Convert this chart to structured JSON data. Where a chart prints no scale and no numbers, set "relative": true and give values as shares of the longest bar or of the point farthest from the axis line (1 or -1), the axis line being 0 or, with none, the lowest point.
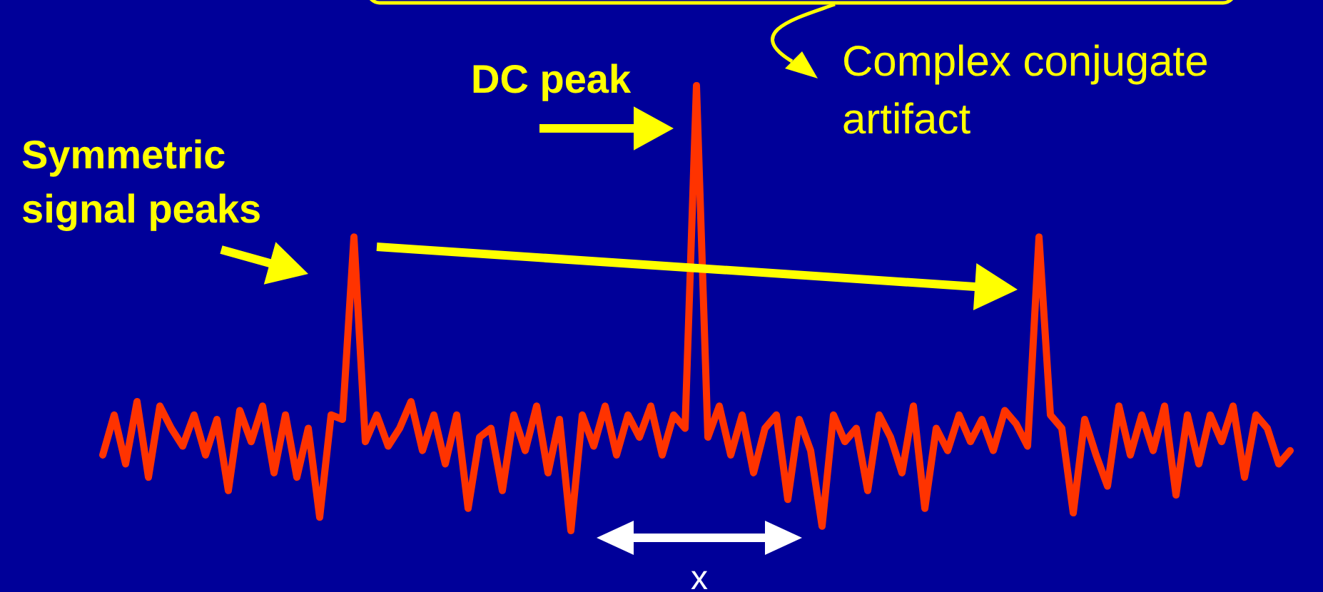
{
  "chart_data": {
    "type": "line",
    "relative": true,
    "categories": [
      null,
      null,
      null,
      null,
      null,
      null,
      null,
      null,
      null,
      null,
      null,
      null,
      null,
      null,
      null,
      null,
      null,
      null,
      null,
      null,
      null,
      null,
      null,
      null,
      null,
      null,
      null,
      null,
      null,
      null,
      null,
      null,
      null,
      null,
      null,
      null,
      null,
      null,
      null,
      null,
      null,
      null,
      null,
      null,
      null,
      null,
      null,
      null,
      null,
      null,
      null,
      null,
      null,
      null,
      null,
      null,
      null,
      null,
      null,
      null,
      null,
      null,
      null,
      null,
      null,
      null,
      null,
      null,
      null,
      null,
      null,
      null,
      null,
      null,
      null,
      null,
      null,
      null,
      null,
      null,
      null,
      null,
      null,
      null,
      null,
      null,
      null,
      null,
      null,
      null,
      null,
      null,
      null,
      null,
      null,
      null,
      null,
      null,
      null,
      null,
      null,
      null,
      null,
      null,
      null
    ],
    "series": [
      {
        "color": "#ff3300",
        "values": [
          0.17,
          0.26,
          0.15,
          0.29,
          0.12,
          0.28,
          0.23,
          0.19,
          0.26,
          0.17,
          0.25,
          0.09,
          0.27,
          0.2,
          0.28,
          0.13,
          0.26,
          0.12,
          0.23,
          0.03,
          0.26,
          0.25,
          0.66,
          0.2,
          0.26,
          0.19,
          0.23,
          0.29,
          0.18,
          0.26,
          0.15,
          0.26,
          0.05,
          0.21,
          0.23,
          0.09,
          0.26,
          0.18,
          0.28,
          0.13,
          0.25,
          0,
          0.26,
          0.19,
          0.28,
          0.17,
          0.26,
          0.21,
          0.28,
          0.17,
          0.26,
          0.23,
          1,
          0.21,
          0.28,
          0.17,
          0.26,
          0.13,
          0.23,
          0.26,
          0.07,
          0.25,
          0.18,
          0.01,
          0.26,
          0.2,
          0.23,
          0.09,
          0.26,
          0.21,
          0.13,
          0.28,
          0.05,
          0.23,
          0.18,
          0.26,
          0.2,
          0.25,
          0.18,
          0.27,
          0.24,
          0.19,
          0.66,
          0.26,
          0.23,
          0.04,
          0.25,
          0.17,
          0.1,
          0.28,
          0.17,
          0.26,
          0.18,
          0.28,
          0.08,
          0.26,
          0.15,
          0.26,
          0.2,
          0.28,
          0.12,
          0.26,
          0.23,
          0.15,
          0.18
        ]
      }
    ],
    "annotations": [
      "DC peak",
      "Symmetric signal peaks",
      "Complex conjugate artifact",
      "x"
    ]
  }
}
